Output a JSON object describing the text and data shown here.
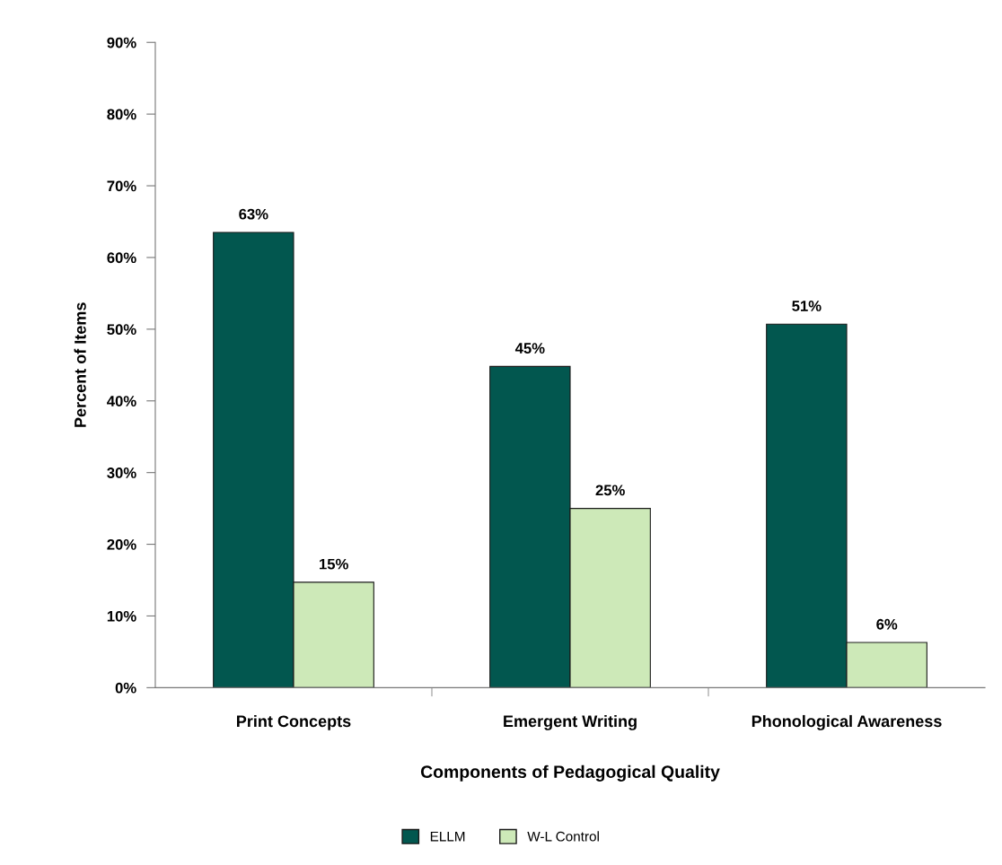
{
  "chart_data": {
    "type": "bar",
    "xlabel": "Components of Pedagogical Quality",
    "ylabel": "Percent of Items",
    "categories": [
      "Print Concepts",
      "Emergent Writing",
      "Phonological Awareness"
    ],
    "series": [
      {
        "name": "ELLM",
        "color": "#02574f",
        "values": [
          63.5,
          44.8,
          50.7
        ],
        "value_labels": [
          "63%",
          "45%",
          "51%"
        ]
      },
      {
        "name": "W-L Control",
        "color": "#cde9b8",
        "values": [
          14.7,
          25.0,
          6.3
        ],
        "value_labels": [
          "15%",
          "25%",
          "6%"
        ]
      }
    ],
    "ylim": [
      0,
      90
    ],
    "yticks": [
      {
        "value": 0,
        "label": "0%"
      },
      {
        "value": 10,
        "label": "10%"
      },
      {
        "value": 20,
        "label": "20%"
      },
      {
        "value": 30,
        "label": "30%"
      },
      {
        "value": 40,
        "label": "40%"
      },
      {
        "value": 50,
        "label": "50%"
      },
      {
        "value": 60,
        "label": "60%"
      },
      {
        "value": 70,
        "label": "70%"
      },
      {
        "value": 80,
        "label": "80%"
      },
      {
        "value": 90,
        "label": "90%"
      }
    ],
    "grid": false,
    "legend": "bottom"
  }
}
